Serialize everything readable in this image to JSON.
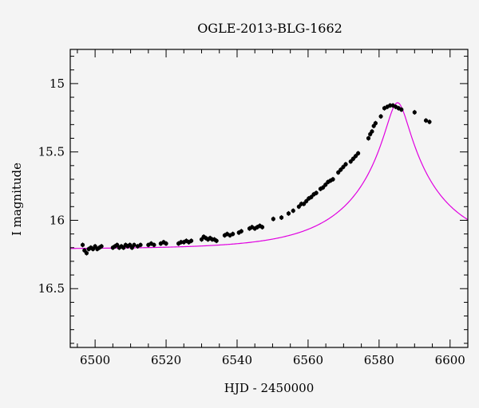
{
  "chart_data": {
    "type": "scatter",
    "title": "OGLE-2013-BLG-1662",
    "xlabel": "HJD - 2450000",
    "ylabel": "I magnitude",
    "xlim": [
      6493,
      6605
    ],
    "ylim": [
      16.93,
      14.75
    ],
    "y_inverted": true,
    "x_ticks": [
      6500,
      6520,
      6540,
      6560,
      6580,
      6600
    ],
    "y_ticks": [
      15,
      15.5,
      16,
      16.5
    ],
    "grid": false,
    "colors": {
      "model": "#e000e0",
      "points": "#000000",
      "background": "#f4f4f4"
    },
    "series": [
      {
        "kind": "points",
        "points": [
          [
            6496.5,
            16.18
          ],
          [
            6497.0,
            16.22
          ],
          [
            6497.6,
            16.24
          ],
          [
            6498.2,
            16.21
          ],
          [
            6498.8,
            16.2
          ],
          [
            6499.4,
            16.21
          ],
          [
            6500.0,
            16.19
          ],
          [
            6500.6,
            16.21
          ],
          [
            6501.2,
            16.2
          ],
          [
            6501.8,
            16.19
          ],
          [
            6505.0,
            16.2
          ],
          [
            6505.6,
            16.19
          ],
          [
            6506.2,
            16.18
          ],
          [
            6506.8,
            16.2
          ],
          [
            6507.4,
            16.19
          ],
          [
            6508.0,
            16.2
          ],
          [
            6508.6,
            16.18
          ],
          [
            6509.2,
            16.19
          ],
          [
            6509.8,
            16.18
          ],
          [
            6510.4,
            16.2
          ],
          [
            6511.0,
            16.18
          ],
          [
            6512.0,
            16.19
          ],
          [
            6512.8,
            16.18
          ],
          [
            6515.0,
            16.18
          ],
          [
            6515.8,
            16.17
          ],
          [
            6516.6,
            16.18
          ],
          [
            6518.5,
            16.17
          ],
          [
            6519.3,
            16.16
          ],
          [
            6520.0,
            16.17
          ],
          [
            6523.5,
            16.17
          ],
          [
            6524.2,
            16.16
          ],
          [
            6525.0,
            16.16
          ],
          [
            6525.7,
            16.15
          ],
          [
            6526.4,
            16.16
          ],
          [
            6527.1,
            16.15
          ],
          [
            6530.0,
            16.14
          ],
          [
            6530.6,
            16.12
          ],
          [
            6531.2,
            16.13
          ],
          [
            6531.8,
            16.14
          ],
          [
            6532.4,
            16.13
          ],
          [
            6533.0,
            16.14
          ],
          [
            6533.6,
            16.14
          ],
          [
            6534.2,
            16.15
          ],
          [
            6536.5,
            16.11
          ],
          [
            6537.2,
            16.1
          ],
          [
            6538.0,
            16.11
          ],
          [
            6538.8,
            16.1
          ],
          [
            6540.5,
            16.09
          ],
          [
            6541.2,
            16.08
          ],
          [
            6543.5,
            16.06
          ],
          [
            6544.2,
            16.05
          ],
          [
            6545.0,
            16.06
          ],
          [
            6545.7,
            16.05
          ],
          [
            6546.4,
            16.04
          ],
          [
            6547.1,
            16.05
          ],
          [
            6550.2,
            15.99
          ],
          [
            6552.5,
            15.98
          ],
          [
            6554.5,
            15.95
          ],
          [
            6555.8,
            15.93
          ],
          [
            6557.4,
            15.9
          ],
          [
            6558.1,
            15.88
          ],
          [
            6558.8,
            15.88
          ],
          [
            6559.5,
            15.86
          ],
          [
            6560.2,
            15.84
          ],
          [
            6560.9,
            15.83
          ],
          [
            6561.6,
            15.81
          ],
          [
            6562.3,
            15.8
          ],
          [
            6563.5,
            15.77
          ],
          [
            6564.2,
            15.76
          ],
          [
            6564.9,
            15.74
          ],
          [
            6565.6,
            15.72
          ],
          [
            6566.3,
            15.71
          ],
          [
            6567.0,
            15.7
          ],
          [
            6568.5,
            15.65
          ],
          [
            6569.2,
            15.63
          ],
          [
            6569.9,
            15.61
          ],
          [
            6570.6,
            15.59
          ],
          [
            6572.0,
            15.57
          ],
          [
            6572.7,
            15.55
          ],
          [
            6573.4,
            15.53
          ],
          [
            6574.1,
            15.51
          ],
          [
            6577.0,
            15.4
          ],
          [
            6577.5,
            15.37
          ],
          [
            6578.0,
            15.35
          ],
          [
            6578.5,
            15.31
          ],
          [
            6579.0,
            15.29
          ],
          [
            6580.5,
            15.24
          ],
          [
            6581.5,
            15.18
          ],
          [
            6582.3,
            15.17
          ],
          [
            6583.1,
            15.16
          ],
          [
            6583.9,
            15.16
          ],
          [
            6584.7,
            15.17
          ],
          [
            6585.5,
            15.18
          ],
          [
            6586.3,
            15.19
          ],
          [
            6590.0,
            15.21
          ],
          [
            6593.2,
            15.27
          ],
          [
            6594.2,
            15.28
          ]
        ]
      },
      {
        "kind": "model",
        "t0": 6585.2,
        "tE": 25,
        "u0": 0.12,
        "i_base": 16.21,
        "delta_max": 1.07
      }
    ]
  }
}
